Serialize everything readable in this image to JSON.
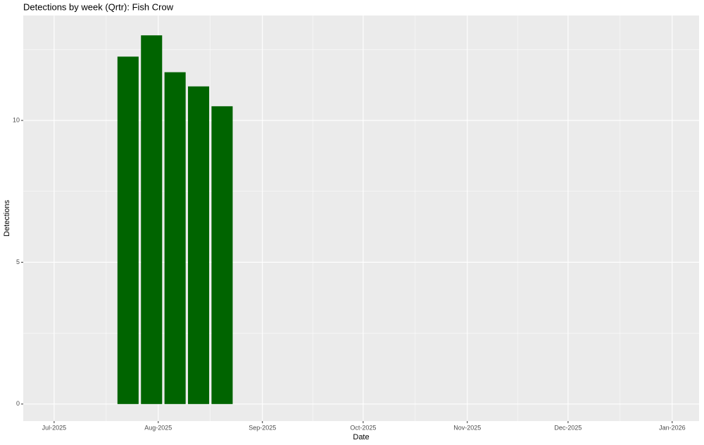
{
  "chart_data": {
    "type": "bar",
    "title": "Detections by week (Qrtr): Fish Crow",
    "x_label": "Date",
    "y_label": "Detections",
    "x": [
      22,
      29,
      36,
      43,
      50
    ],
    "values": [
      12.25,
      13,
      11.7,
      11.2,
      10.5
    ],
    "color": "#006400",
    "xlim": [
      -9.2,
      192
    ],
    "xticks": [
      {
        "value": 0,
        "label": "Jul-2025"
      },
      {
        "value": 31,
        "label": "Aug-2025"
      },
      {
        "value": 62,
        "label": "Sep-2025"
      },
      {
        "value": 92,
        "label": "Oct-2025"
      },
      {
        "value": 123,
        "label": "Nov-2025"
      },
      {
        "value": 153,
        "label": "Dec-2025"
      },
      {
        "value": 184,
        "label": "Jan-2026"
      }
    ],
    "ylim": [
      -0.6,
      13.7
    ],
    "yticks": [
      0,
      5,
      10
    ],
    "grid": true
  }
}
